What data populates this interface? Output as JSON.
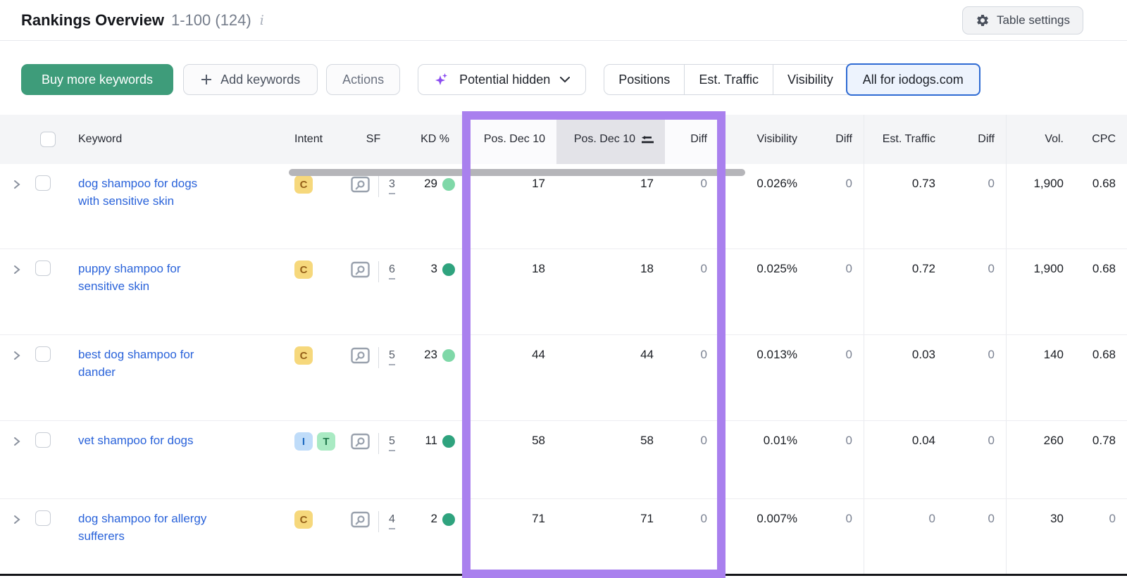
{
  "titlebar": {
    "title": "Rankings Overview",
    "range": "1-100 (124)",
    "table_settings": "Table settings"
  },
  "toolbar": {
    "buy_keywords": "Buy more keywords",
    "add_keywords": "Add keywords",
    "actions": "Actions",
    "potential_filter": "Potential hidden",
    "view_tabs": [
      {
        "label": "Positions",
        "selected": false
      },
      {
        "label": "Est. Traffic",
        "selected": false
      },
      {
        "label": "Visibility",
        "selected": false
      },
      {
        "label": "All for iodogs.com",
        "selected": true
      }
    ]
  },
  "table": {
    "columns": {
      "keyword": "Keyword",
      "intent": "Intent",
      "sf": "SF",
      "kd": "KD %",
      "pos_current": "Pos. Dec 10",
      "pos_sorted": "Pos. Dec 10",
      "diff": "Diff",
      "visibility": "Visibility",
      "visibility_diff": "Diff",
      "est_traffic": "Est. Traffic",
      "traffic_diff": "Diff",
      "volume": "Vol.",
      "cpc": "CPC"
    },
    "highlight_color": "#a980ee",
    "intent_colors": {
      "C": {
        "bg": "#f6d87c",
        "fg": "#96611a"
      },
      "I": {
        "bg": "#bfdcf9",
        "fg": "#1f6bc2"
      },
      "T": {
        "bg": "#a9eac3",
        "fg": "#237a4e"
      }
    },
    "kd_colors": {
      "easy": "#7fd8a8",
      "very_easy": "#2fa37e"
    },
    "rows": [
      {
        "keyword_lines": [
          "dog shampoo for dogs",
          "with sensitive skin"
        ],
        "intents": [
          "C"
        ],
        "sf": "3",
        "kd": "29",
        "kd_level": "easy",
        "pos_current": "17",
        "pos_sorted": "17",
        "diff": "0",
        "visibility": "0.026%",
        "visibility_diff": "0",
        "est_traffic": "0.73",
        "traffic_diff": "0",
        "volume": "1,900",
        "cpc": "0.68"
      },
      {
        "keyword_lines": [
          "puppy shampoo for",
          "sensitive skin"
        ],
        "intents": [
          "C"
        ],
        "sf": "6",
        "kd": "3",
        "kd_level": "very_easy",
        "pos_current": "18",
        "pos_sorted": "18",
        "diff": "0",
        "visibility": "0.025%",
        "visibility_diff": "0",
        "est_traffic": "0.72",
        "traffic_diff": "0",
        "volume": "1,900",
        "cpc": "0.68"
      },
      {
        "keyword_lines": [
          "best dog shampoo for",
          "dander"
        ],
        "intents": [
          "C"
        ],
        "sf": "5",
        "kd": "23",
        "kd_level": "easy",
        "pos_current": "44",
        "pos_sorted": "44",
        "diff": "0",
        "visibility": "0.013%",
        "visibility_diff": "0",
        "est_traffic": "0.03",
        "traffic_diff": "0",
        "volume": "140",
        "cpc": "0.68"
      },
      {
        "keyword_lines": [
          "vet shampoo for dogs"
        ],
        "intents": [
          "I",
          "T"
        ],
        "sf": "5",
        "kd": "11",
        "kd_level": "very_easy",
        "pos_current": "58",
        "pos_sorted": "58",
        "diff": "0",
        "visibility": "0.01%",
        "visibility_diff": "0",
        "est_traffic": "0.04",
        "traffic_diff": "0",
        "volume": "260",
        "cpc": "0.78"
      },
      {
        "keyword_lines": [
          "dog shampoo for allergy",
          "sufferers"
        ],
        "intents": [
          "C"
        ],
        "sf": "4",
        "kd": "2",
        "kd_level": "very_easy",
        "pos_current": "71",
        "pos_sorted": "71",
        "diff": "0",
        "visibility": "0.007%",
        "visibility_diff": "0",
        "est_traffic": "0",
        "traffic_diff": "0",
        "volume": "30",
        "cpc": "0"
      }
    ]
  }
}
